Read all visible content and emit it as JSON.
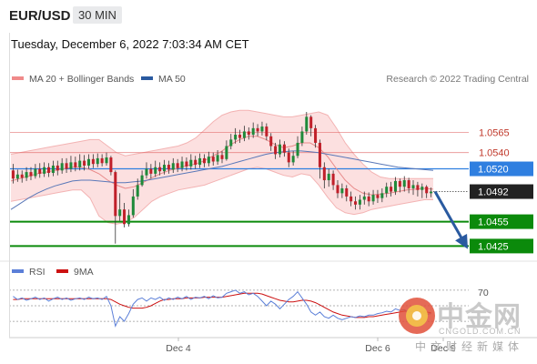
{
  "header": {
    "pair": "EUR/USD",
    "timeframe": "30 MIN",
    "datetime": "Tuesday, December 6, 2022 7:03:34 AM CET"
  },
  "legend": {
    "bollinger_label": "MA 20 + Bollinger Bands",
    "ma50_label": "MA 50",
    "copyright": "Research © 2022 Trading Central",
    "bollinger_color": "#f08a8a",
    "ma50_color": "#2a5aa0"
  },
  "rsi_legend": {
    "rsi_label": "RSI",
    "ma9_label": "9MA",
    "rsi_color": "#5b7fd8",
    "ma9_color": "#cc1111",
    "level_70": "70"
  },
  "watermark": {
    "chinese": "中金网",
    "url": "CNGOLD.COM.CN",
    "sub": "中文财经新媒体"
  },
  "chart_data": {
    "type": "candlestick",
    "ylim": [
      1.0412,
      1.0618
    ],
    "x_ticks": [
      "Dec 4",
      "Dec 6",
      "Dec 9"
    ],
    "levels": [
      {
        "label": "1.0565",
        "value": 1.0565,
        "kind": "resistance",
        "color": "#e06060"
      },
      {
        "label": "1.0540",
        "value": 1.054,
        "kind": "resistance",
        "color": "#e06060"
      },
      {
        "label": "1.0520",
        "value": 1.052,
        "kind": "pivot",
        "color": "#2f7fe0"
      },
      {
        "label": "1.0492",
        "value": 1.0492,
        "kind": "last-price",
        "color": "#222222"
      },
      {
        "label": "1.0455",
        "value": 1.0455,
        "kind": "support",
        "color": "#0b8a0b"
      },
      {
        "label": "1.0425",
        "value": 1.0425,
        "kind": "support",
        "color": "#0b8a0b"
      }
    ],
    "forecast": {
      "from": 1.0492,
      "to": 1.0425,
      "color": "#2a5aa0"
    },
    "candles": [
      [
        1.0518,
        1.0508,
        1.0526,
        1.0502
      ],
      [
        1.0508,
        1.0513,
        1.0519,
        1.0504
      ],
      [
        1.0513,
        1.0509,
        1.0518,
        1.0503
      ],
      [
        1.0509,
        1.0516,
        1.0522,
        1.0505
      ],
      [
        1.0516,
        1.0511,
        1.0522,
        1.0506
      ],
      [
        1.0511,
        1.052,
        1.0526,
        1.0508
      ],
      [
        1.052,
        1.0514,
        1.0527,
        1.0509
      ],
      [
        1.0514,
        1.0522,
        1.0528,
        1.051
      ],
      [
        1.0522,
        1.0515,
        1.0527,
        1.051
      ],
      [
        1.0515,
        1.0524,
        1.053,
        1.0511
      ],
      [
        1.0524,
        1.0518,
        1.053,
        1.0512
      ],
      [
        1.0518,
        1.0527,
        1.0533,
        1.0514
      ],
      [
        1.0527,
        1.052,
        1.0533,
        1.0515
      ],
      [
        1.052,
        1.0528,
        1.0536,
        1.0516
      ],
      [
        1.0528,
        1.0522,
        1.0535,
        1.0517
      ],
      [
        1.0522,
        1.053,
        1.0538,
        1.0518
      ],
      [
        1.053,
        1.0524,
        1.0537,
        1.0518
      ],
      [
        1.0524,
        1.0532,
        1.0538,
        1.052
      ],
      [
        1.0532,
        1.0526,
        1.0538,
        1.0521
      ],
      [
        1.0526,
        1.0533,
        1.0539,
        1.0522
      ],
      [
        1.0533,
        1.0527,
        1.0538,
        1.0523
      ],
      [
        1.0527,
        1.0534,
        1.054,
        1.0524
      ],
      [
        1.0534,
        1.0516,
        1.0536,
        1.0512
      ],
      [
        1.0516,
        1.0462,
        1.0518,
        1.0428
      ],
      [
        1.0462,
        1.047,
        1.049,
        1.0456
      ],
      [
        1.047,
        1.0452,
        1.0478,
        1.0448
      ],
      [
        1.0452,
        1.0463,
        1.047,
        1.0449
      ],
      [
        1.0463,
        1.0486,
        1.0495,
        1.046
      ],
      [
        1.0486,
        1.05,
        1.0508,
        1.0482
      ],
      [
        1.05,
        1.0512,
        1.0518,
        1.0498
      ],
      [
        1.0512,
        1.052,
        1.0528,
        1.0508
      ],
      [
        1.052,
        1.0514,
        1.0526,
        1.0508
      ],
      [
        1.0514,
        1.0522,
        1.053,
        1.051
      ],
      [
        1.0522,
        1.0517,
        1.0528,
        1.0512
      ],
      [
        1.0517,
        1.0525,
        1.0531,
        1.0513
      ],
      [
        1.0525,
        1.0519,
        1.053,
        1.0514
      ],
      [
        1.0519,
        1.0527,
        1.0533,
        1.0515
      ],
      [
        1.0527,
        1.0521,
        1.0532,
        1.0516
      ],
      [
        1.0521,
        1.0529,
        1.0535,
        1.0517
      ],
      [
        1.0529,
        1.0523,
        1.0534,
        1.0518
      ],
      [
        1.0523,
        1.0531,
        1.0538,
        1.0519
      ],
      [
        1.0531,
        1.0525,
        1.0536,
        1.052
      ],
      [
        1.0525,
        1.0533,
        1.0539,
        1.0521
      ],
      [
        1.0533,
        1.0527,
        1.0538,
        1.0522
      ],
      [
        1.0527,
        1.0535,
        1.0541,
        1.0523
      ],
      [
        1.0535,
        1.0529,
        1.054,
        1.0524
      ],
      [
        1.0529,
        1.0537,
        1.0543,
        1.0525
      ],
      [
        1.0537,
        1.0532,
        1.0542,
        1.0527
      ],
      [
        1.0532,
        1.0548,
        1.0555,
        1.053
      ],
      [
        1.0548,
        1.0556,
        1.0563,
        1.0544
      ],
      [
        1.0556,
        1.0562,
        1.057,
        1.0551
      ],
      [
        1.0562,
        1.0558,
        1.0568,
        1.0552
      ],
      [
        1.0558,
        1.0566,
        1.0573,
        1.0554
      ],
      [
        1.0566,
        1.0562,
        1.0571,
        1.0556
      ],
      [
        1.0562,
        1.057,
        1.0577,
        1.0558
      ],
      [
        1.057,
        1.0566,
        1.0575,
        1.056
      ],
      [
        1.0566,
        1.0572,
        1.0578,
        1.0561
      ],
      [
        1.0572,
        1.056,
        1.0576,
        1.0555
      ],
      [
        1.056,
        1.0548,
        1.0564,
        1.0542
      ],
      [
        1.0548,
        1.0538,
        1.0552,
        1.0532
      ],
      [
        1.0538,
        1.055,
        1.0556,
        1.0534
      ],
      [
        1.055,
        1.054,
        1.0554,
        1.0535
      ],
      [
        1.054,
        1.0528,
        1.0545,
        1.0522
      ],
      [
        1.0528,
        1.0536,
        1.0542,
        1.0524
      ],
      [
        1.0536,
        1.0552,
        1.056,
        1.0533
      ],
      [
        1.0552,
        1.0566,
        1.0572,
        1.0548
      ],
      [
        1.0566,
        1.0584,
        1.059,
        1.0562
      ],
      [
        1.0584,
        1.057,
        1.0586,
        1.056
      ],
      [
        1.057,
        1.0552,
        1.0574,
        1.0546
      ],
      [
        1.0552,
        1.0522,
        1.0556,
        1.0508
      ],
      [
        1.0522,
        1.0506,
        1.0528,
        1.0496
      ],
      [
        1.0506,
        1.0514,
        1.052,
        1.0498
      ],
      [
        1.0514,
        1.05,
        1.0518,
        1.0494
      ],
      [
        1.05,
        1.049,
        1.0506,
        1.0484
      ],
      [
        1.049,
        1.0496,
        1.0502,
        1.0484
      ],
      [
        1.0496,
        1.0486,
        1.05,
        1.048
      ],
      [
        1.0486,
        1.048,
        1.0492,
        1.0474
      ],
      [
        1.048,
        1.0476,
        1.0486,
        1.047
      ],
      [
        1.0476,
        1.0482,
        1.0488,
        1.047
      ],
      [
        1.0482,
        1.0486,
        1.0492,
        1.0476
      ],
      [
        1.0486,
        1.048,
        1.0491,
        1.0474
      ],
      [
        1.048,
        1.0488,
        1.0494,
        1.0476
      ],
      [
        1.0488,
        1.0484,
        1.0494,
        1.0478
      ],
      [
        1.0484,
        1.049,
        1.0496,
        1.0479
      ],
      [
        1.049,
        1.0498,
        1.0503,
        1.0485
      ],
      [
        1.0498,
        1.0492,
        1.0504,
        1.0486
      ],
      [
        1.0492,
        1.0505,
        1.051,
        1.0488
      ],
      [
        1.0505,
        1.0498,
        1.0508,
        1.0491
      ],
      [
        1.0498,
        1.0506,
        1.0511,
        1.0492
      ],
      [
        1.0506,
        1.0496,
        1.0509,
        1.049
      ],
      [
        1.0496,
        1.05,
        1.0506,
        1.0488
      ],
      [
        1.05,
        1.0494,
        1.0504,
        1.0486
      ],
      [
        1.0494,
        1.0498,
        1.0502,
        1.0484
      ],
      [
        1.0498,
        1.049,
        1.05,
        1.0484
      ],
      [
        1.049,
        1.0492,
        1.0497,
        1.0485
      ]
    ],
    "bollinger": {
      "mid": [
        1.0505,
        1.0508,
        1.0511,
        1.0514,
        1.0516,
        1.0518,
        1.052,
        1.0522,
        1.0522,
        1.0519,
        1.0514,
        1.0506,
        1.05,
        1.0496,
        1.0498,
        1.0503,
        1.0509,
        1.0514,
        1.0518,
        1.0521,
        1.0524,
        1.0526,
        1.053,
        1.0536,
        1.0542,
        1.055,
        1.0556,
        1.056,
        1.056,
        1.0556,
        1.055,
        1.0546,
        1.0548,
        1.0552,
        1.0552,
        1.0546,
        1.0535,
        1.052,
        1.0506,
        1.0496,
        1.049,
        1.0488,
        1.0489,
        1.049,
        1.0492,
        1.0494,
        1.0495,
        1.0496,
        1.0495
      ],
      "upper": [
        1.0538,
        1.054,
        1.0542,
        1.0544,
        1.0546,
        1.0548,
        1.055,
        1.0552,
        1.0554,
        1.0556,
        1.0556,
        1.0548,
        1.054,
        1.0536,
        1.0538,
        1.054,
        1.0542,
        1.0544,
        1.0546,
        1.0548,
        1.0552,
        1.0558,
        1.0568,
        1.0578,
        1.0586,
        1.059,
        1.0592,
        1.0592,
        1.059,
        1.0588,
        1.0586,
        1.0584,
        1.0584,
        1.0586,
        1.0588,
        1.059,
        1.0586,
        1.057,
        1.0552,
        1.0538,
        1.0526,
        1.0516,
        1.051,
        1.0508,
        1.0508,
        1.0508,
        1.0508,
        1.0508,
        1.0508
      ],
      "lower": [
        1.048,
        1.0482,
        1.0484,
        1.0486,
        1.0488,
        1.049,
        1.0492,
        1.0494,
        1.0494,
        1.0484,
        1.0462,
        1.0454,
        1.0452,
        1.0454,
        1.046,
        1.047,
        1.048,
        1.0486,
        1.049,
        1.0494,
        1.0496,
        1.0498,
        1.05,
        1.0504,
        1.0508,
        1.0512,
        1.0516,
        1.052,
        1.0522,
        1.052,
        1.0516,
        1.0512,
        1.051,
        1.0514,
        1.0512,
        1.05,
        1.0485,
        1.0472,
        1.0466,
        1.0464,
        1.0466,
        1.047,
        1.0472,
        1.0474,
        1.0476,
        1.0478,
        1.048,
        1.0482,
        1.0482
      ]
    },
    "ma50": [
      1.047,
      1.0477,
      1.0484,
      1.049,
      1.0495,
      1.0499,
      1.0502,
      1.0505,
      1.0506,
      1.0506,
      1.0505,
      1.0504,
      1.0503,
      1.0503,
      1.0504,
      1.0505,
      1.0507,
      1.0509,
      1.0511,
      1.0513,
      1.0515,
      1.0517,
      1.0519,
      1.0521,
      1.0523,
      1.0526,
      1.0529,
      1.0532,
      1.0535,
      1.0538,
      1.054,
      1.0541,
      1.0542,
      1.0542,
      1.0541,
      1.054,
      1.0538,
      1.0536,
      1.0534,
      1.0532,
      1.053,
      1.0528,
      1.0526,
      1.0524,
      1.0522,
      1.0521,
      1.052,
      1.0519,
      1.0518
    ],
    "rsi_ylim": [
      15,
      85
    ],
    "rsi": [
      62,
      58,
      60,
      57,
      59,
      61,
      58,
      60,
      56,
      59,
      61,
      58,
      60,
      57,
      59,
      60,
      58,
      61,
      59,
      60,
      58,
      62,
      50,
      24,
      36,
      30,
      40,
      52,
      58,
      60,
      56,
      60,
      58,
      61,
      57,
      60,
      58,
      61,
      59,
      62,
      58,
      61,
      60,
      62,
      59,
      63,
      60,
      61,
      66,
      68,
      70,
      66,
      68,
      64,
      66,
      62,
      56,
      50,
      56,
      52,
      46,
      52,
      58,
      62,
      68,
      60,
      52,
      42,
      38,
      42,
      36,
      34,
      38,
      34,
      32,
      34,
      36,
      35,
      37,
      36,
      38,
      38,
      40,
      41,
      43,
      42,
      46,
      44,
      45,
      41,
      43,
      40,
      42,
      39,
      40
    ],
    "rsi_ma9": [
      58,
      58,
      59,
      59,
      59,
      59,
      59,
      59,
      59,
      59,
      59,
      59,
      59,
      59,
      59,
      59,
      59,
      59,
      59,
      59,
      59,
      59,
      58,
      55,
      52,
      50,
      48,
      47,
      47,
      47,
      48,
      50,
      53,
      56,
      58,
      58,
      59,
      59,
      59,
      60,
      60,
      60,
      60,
      61,
      61,
      61,
      61,
      61,
      62,
      63,
      64,
      65,
      66,
      66,
      66,
      66,
      65,
      63,
      61,
      59,
      57,
      56,
      55,
      55,
      56,
      57,
      57,
      56,
      54,
      51,
      48,
      45,
      42,
      40,
      38,
      37,
      36,
      35,
      35,
      35,
      36,
      36,
      37,
      38,
      39,
      40,
      41,
      42,
      43,
      43,
      43,
      43,
      42,
      42,
      41
    ]
  }
}
